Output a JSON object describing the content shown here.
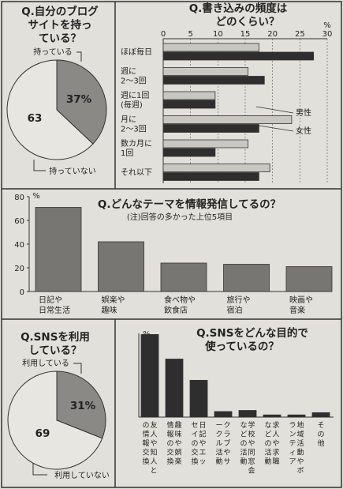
{
  "chart_data": [
    {
      "type": "pie",
      "title": [
        "Q.自分のブログ",
        "サイトを持っ",
        "ている？"
      ],
      "slices": [
        {
          "label": "持っている",
          "value": 37,
          "value_label": "37%",
          "color": "#8a8986"
        },
        {
          "label": "持っていない",
          "value": 63,
          "value_label": "63",
          "color": "#e7e6e1"
        }
      ]
    },
    {
      "type": "bar",
      "orientation": "horizontal",
      "title": [
        "Q.書き込みの頻度は",
        "どのくらい？"
      ],
      "unit": "%",
      "xlim": [
        0,
        30
      ],
      "xticks": [
        "0",
        "5",
        "10",
        "15",
        "20",
        "25",
        "30"
      ],
      "categories": [
        [
          "ほぼ毎日"
        ],
        [
          "週に",
          "2～3回"
        ],
        [
          "週に1回",
          "(毎週)"
        ],
        [
          "月に",
          "2～3回"
        ],
        [
          "数カ月に",
          "1回"
        ],
        [
          "それ以下"
        ]
      ],
      "series": [
        {
          "name": "男性",
          "values": [
            17.5,
            15.5,
            9.5,
            23.5,
            15.5,
            19.5
          ],
          "color": "#c8c7c2"
        },
        {
          "name": "女性",
          "values": [
            27.5,
            18.5,
            9.5,
            17.5,
            9.5,
            17.5
          ],
          "color": "#2e2e2e"
        }
      ],
      "legend": [
        "男性",
        "女性"
      ]
    },
    {
      "type": "bar",
      "title": [
        "Q.どんなテーマを情報発信してるの？"
      ],
      "subtitle": "(注)回答の多かった上位5項目",
      "unit": "%",
      "ylim": [
        0,
        80
      ],
      "yticks": [
        "0",
        "20",
        "40",
        "60",
        "80"
      ],
      "categories": [
        [
          "日記や",
          "日常生活"
        ],
        [
          "娯楽や",
          "趣味"
        ],
        [
          "食べ物や",
          "飲食店"
        ],
        [
          "旅行や",
          "宿泊"
        ],
        [
          "映画や",
          "音楽"
        ]
      ],
      "values": [
        71,
        42,
        24,
        23,
        21
      ],
      "color": "#777672"
    },
    {
      "type": "pie",
      "title": [
        "Q.SNSを利用",
        "している？"
      ],
      "slices": [
        {
          "label": "利用している",
          "value": 31,
          "value_label": "31%",
          "color": "#8a8986"
        },
        {
          "label": "利用していない",
          "value": 69,
          "value_label": "69",
          "color": "#e7e6e1"
        }
      ]
    },
    {
      "type": "bar",
      "title": [
        "Q.SNSをどんな目的で",
        "使っているの？"
      ],
      "unit": "%",
      "ylim": [
        0,
        75
      ],
      "categories": [
        "友人や知人との情報交換",
        "趣味や娯楽情報の交換",
        "日記やエッセイの交換",
        "クラブやサークル活動",
        "学校や同窓会などの活動",
        "求人や求職などの活動",
        "地域活動やボランティア",
        "その他"
      ],
      "values": [
        74,
        52,
        33,
        5,
        6,
        2,
        2,
        4
      ],
      "color": "#2e2e2e"
    }
  ]
}
